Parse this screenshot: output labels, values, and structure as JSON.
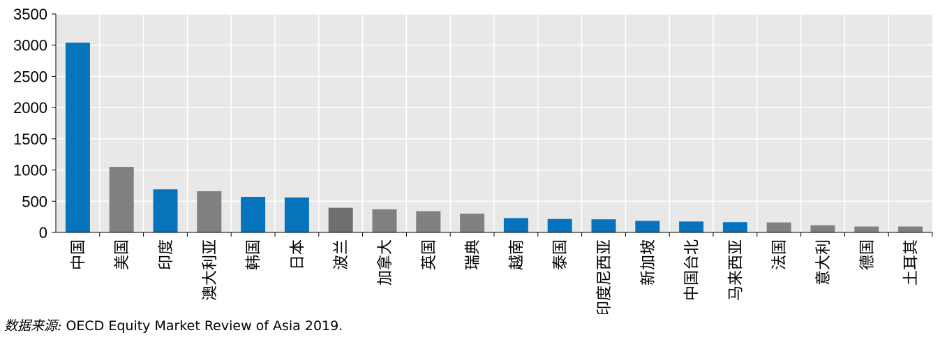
{
  "chart_data": {
    "type": "bar",
    "title": "",
    "xlabel": "",
    "ylabel": "",
    "ylim": [
      0,
      3500
    ],
    "yticks": [
      0,
      500,
      1000,
      1500,
      2000,
      2500,
      3000,
      3500
    ],
    "grid": true,
    "categories": [
      "中国",
      "美国",
      "印度",
      "澳大利亚",
      "韩国",
      "日本",
      "波兰",
      "加拿大",
      "英国",
      "瑞典",
      "越南",
      "泰国",
      "印度尼西亚",
      "新加坡",
      "中国台北",
      "马来西亚",
      "法国",
      "意大利",
      "德国",
      "土耳其"
    ],
    "values": [
      3040,
      1050,
      690,
      660,
      570,
      560,
      395,
      370,
      340,
      300,
      230,
      215,
      210,
      185,
      175,
      165,
      160,
      115,
      95,
      95
    ],
    "groups": [
      "asia",
      "other",
      "asia",
      "other",
      "asia",
      "asia",
      "other",
      "other",
      "other",
      "other",
      "asia",
      "asia",
      "asia",
      "asia",
      "asia",
      "asia",
      "other",
      "other",
      "other",
      "other"
    ]
  },
  "colors": {
    "asia": "#0673bd",
    "other": "#808080",
    "poland": "#706e6e",
    "plot_bg": "#e8e8e8",
    "grid": "#ffffff"
  },
  "source": {
    "label": "数据来源:",
    "text": " OECD Equity Market Review of Asia 2019."
  }
}
